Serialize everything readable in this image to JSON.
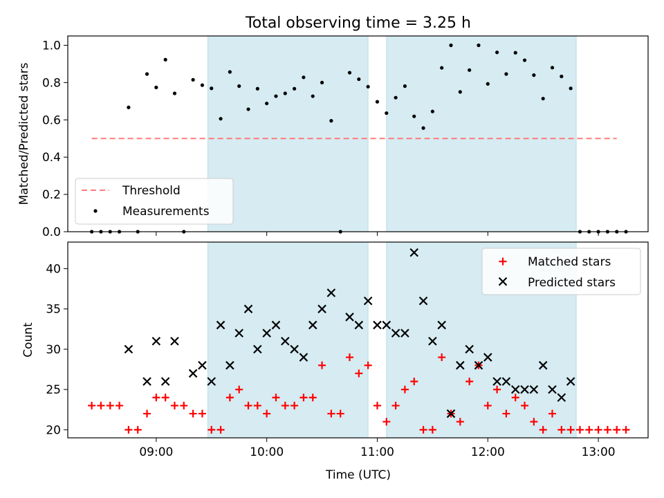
{
  "chart_data": [
    {
      "type": "scatter",
      "title": "Total observing time = 3.25 h",
      "xlabel": "",
      "ylabel": "Matched/Predicted stars",
      "ylim": [
        0,
        1.05
      ],
      "yticks": [
        0.0,
        0.2,
        0.4,
        0.6,
        0.8,
        1.0
      ],
      "ytick_labels": [
        "0.0",
        "0.2",
        "0.4",
        "0.6",
        "0.8",
        "1.0"
      ],
      "threshold": {
        "name": "Threshold",
        "value": 0.5,
        "x_start": "08:25",
        "x_end": "13:10",
        "color": "#ff7a7a"
      },
      "series": [
        {
          "name": "Measurements",
          "color": "#000000",
          "points": [
            [
              "08:25",
              0.0
            ],
            [
              "08:30",
              0.0
            ],
            [
              "08:35",
              0.0
            ],
            [
              "08:40",
              0.0
            ],
            [
              "08:45",
              0.667
            ],
            [
              "08:50",
              0.0
            ],
            [
              "08:55",
              0.846
            ],
            [
              "09:00",
              0.774
            ],
            [
              "09:05",
              0.923
            ],
            [
              "09:10",
              0.742
            ],
            [
              "09:15",
              0.0
            ],
            [
              "09:20",
              0.815
            ],
            [
              "09:25",
              0.786
            ],
            [
              "09:30",
              0.769
            ],
            [
              "09:35",
              0.606
            ],
            [
              "09:40",
              0.857
            ],
            [
              "09:45",
              0.781
            ],
            [
              "09:50",
              0.657
            ],
            [
              "09:55",
              0.767
            ],
            [
              "10:00",
              0.688
            ],
            [
              "10:05",
              0.727
            ],
            [
              "10:10",
              0.742
            ],
            [
              "10:15",
              0.767
            ],
            [
              "10:20",
              0.828
            ],
            [
              "10:25",
              0.727
            ],
            [
              "10:30",
              0.8
            ],
            [
              "10:35",
              0.595
            ],
            [
              "10:40",
              0.0
            ],
            [
              "10:45",
              0.853
            ],
            [
              "10:50",
              0.818
            ],
            [
              "10:55",
              0.778
            ],
            [
              "11:00",
              0.697
            ],
            [
              "11:05",
              0.636
            ],
            [
              "11:10",
              0.719
            ],
            [
              "11:15",
              0.781
            ],
            [
              "11:20",
              0.619
            ],
            [
              "11:25",
              0.556
            ],
            [
              "11:30",
              0.645
            ],
            [
              "11:35",
              0.879
            ],
            [
              "11:40",
              1.0
            ],
            [
              "11:45",
              0.75
            ],
            [
              "11:50",
              0.867
            ],
            [
              "11:55",
              1.0
            ],
            [
              "12:00",
              0.793
            ],
            [
              "12:05",
              0.962
            ],
            [
              "12:10",
              0.846
            ],
            [
              "12:15",
              0.96
            ],
            [
              "12:20",
              0.92
            ],
            [
              "12:25",
              0.84
            ],
            [
              "12:30",
              0.714
            ],
            [
              "12:35",
              0.88
            ],
            [
              "12:40",
              0.833
            ],
            [
              "12:45",
              0.769
            ],
            [
              "12:50",
              0.0
            ],
            [
              "12:55",
              0.0
            ],
            [
              "13:00",
              0.0
            ],
            [
              "13:05",
              0.0
            ],
            [
              "13:10",
              0.0
            ],
            [
              "13:15",
              0.0
            ]
          ]
        }
      ],
      "legend": "lower-left"
    },
    {
      "type": "scatter",
      "xlabel": "Time (UTC)",
      "ylabel": "Count",
      "ylim": [
        19,
        43.3
      ],
      "yticks": [
        20,
        25,
        30,
        35,
        40
      ],
      "ytick_labels": [
        "20",
        "25",
        "30",
        "35",
        "40"
      ],
      "xlim": [
        "08:12",
        "13:27"
      ],
      "xticks": [
        "09:00",
        "10:00",
        "11:00",
        "12:00",
        "13:00"
      ],
      "shaded_intervals": [
        [
          "09:28",
          "10:55"
        ],
        [
          "11:05",
          "12:48"
        ]
      ],
      "series": [
        {
          "name": "Matched stars",
          "marker": "plus",
          "color": "#ff0000",
          "points": [
            [
              "08:25",
              23
            ],
            [
              "08:30",
              23
            ],
            [
              "08:35",
              23
            ],
            [
              "08:40",
              23
            ],
            [
              "08:45",
              20
            ],
            [
              "08:50",
              20
            ],
            [
              "08:55",
              22
            ],
            [
              "09:00",
              24
            ],
            [
              "09:05",
              24
            ],
            [
              "09:10",
              23
            ],
            [
              "09:15",
              23
            ],
            [
              "09:20",
              22
            ],
            [
              "09:25",
              22
            ],
            [
              "09:30",
              20
            ],
            [
              "09:35",
              20
            ],
            [
              "09:40",
              24
            ],
            [
              "09:45",
              25
            ],
            [
              "09:50",
              23
            ],
            [
              "09:55",
              23
            ],
            [
              "10:00",
              22
            ],
            [
              "10:05",
              24
            ],
            [
              "10:10",
              23
            ],
            [
              "10:15",
              23
            ],
            [
              "10:20",
              24
            ],
            [
              "10:25",
              24
            ],
            [
              "10:30",
              28
            ],
            [
              "10:35",
              22
            ],
            [
              "10:40",
              22
            ],
            [
              "10:45",
              29
            ],
            [
              "10:50",
              27
            ],
            [
              "10:55",
              28
            ],
            [
              "11:00",
              23
            ],
            [
              "11:05",
              21
            ],
            [
              "11:10",
              23
            ],
            [
              "11:15",
              25
            ],
            [
              "11:20",
              26
            ],
            [
              "11:25",
              20
            ],
            [
              "11:30",
              20
            ],
            [
              "11:35",
              29
            ],
            [
              "11:40",
              22
            ],
            [
              "11:45",
              21
            ],
            [
              "11:50",
              26
            ],
            [
              "11:55",
              28
            ],
            [
              "12:00",
              23
            ],
            [
              "12:05",
              25
            ],
            [
              "12:10",
              22
            ],
            [
              "12:15",
              24
            ],
            [
              "12:20",
              23
            ],
            [
              "12:25",
              21
            ],
            [
              "12:30",
              20
            ],
            [
              "12:35",
              22
            ],
            [
              "12:40",
              20
            ],
            [
              "12:45",
              20
            ],
            [
              "12:50",
              20
            ],
            [
              "12:55",
              20
            ],
            [
              "13:00",
              20
            ],
            [
              "13:05",
              20
            ],
            [
              "13:10",
              20
            ],
            [
              "13:15",
              20
            ]
          ]
        },
        {
          "name": "Predicted stars",
          "marker": "x",
          "color": "#000000",
          "points": [
            [
              "08:45",
              30
            ],
            [
              "08:55",
              26
            ],
            [
              "09:00",
              31
            ],
            [
              "09:05",
              26
            ],
            [
              "09:10",
              31
            ],
            [
              "09:20",
              27
            ],
            [
              "09:25",
              28
            ],
            [
              "09:30",
              26
            ],
            [
              "09:35",
              33
            ],
            [
              "09:40",
              28
            ],
            [
              "09:45",
              32
            ],
            [
              "09:50",
              35
            ],
            [
              "09:55",
              30
            ],
            [
              "10:00",
              32
            ],
            [
              "10:05",
              33
            ],
            [
              "10:10",
              31
            ],
            [
              "10:15",
              30
            ],
            [
              "10:20",
              29
            ],
            [
              "10:25",
              33
            ],
            [
              "10:30",
              35
            ],
            [
              "10:35",
              37
            ],
            [
              "10:45",
              34
            ],
            [
              "10:50",
              33
            ],
            [
              "10:55",
              36
            ],
            [
              "11:00",
              33
            ],
            [
              "11:05",
              33
            ],
            [
              "11:10",
              32
            ],
            [
              "11:15",
              32
            ],
            [
              "11:20",
              42
            ],
            [
              "11:25",
              36
            ],
            [
              "11:30",
              31
            ],
            [
              "11:35",
              33
            ],
            [
              "11:40",
              22
            ],
            [
              "11:45",
              28
            ],
            [
              "11:50",
              30
            ],
            [
              "11:55",
              28
            ],
            [
              "12:00",
              29
            ],
            [
              "12:05",
              26
            ],
            [
              "12:10",
              26
            ],
            [
              "12:15",
              25
            ],
            [
              "12:20",
              25
            ],
            [
              "12:25",
              25
            ],
            [
              "12:30",
              28
            ],
            [
              "12:35",
              25
            ],
            [
              "12:40",
              24
            ],
            [
              "12:45",
              26
            ]
          ]
        }
      ],
      "legend": "top-right"
    }
  ],
  "style": {
    "shade_color": "#add8e6",
    "threshold_color": "#ff7a7a",
    "matched_color": "#ff0000",
    "predicted_color": "#000000",
    "measurement_color": "#000000"
  }
}
